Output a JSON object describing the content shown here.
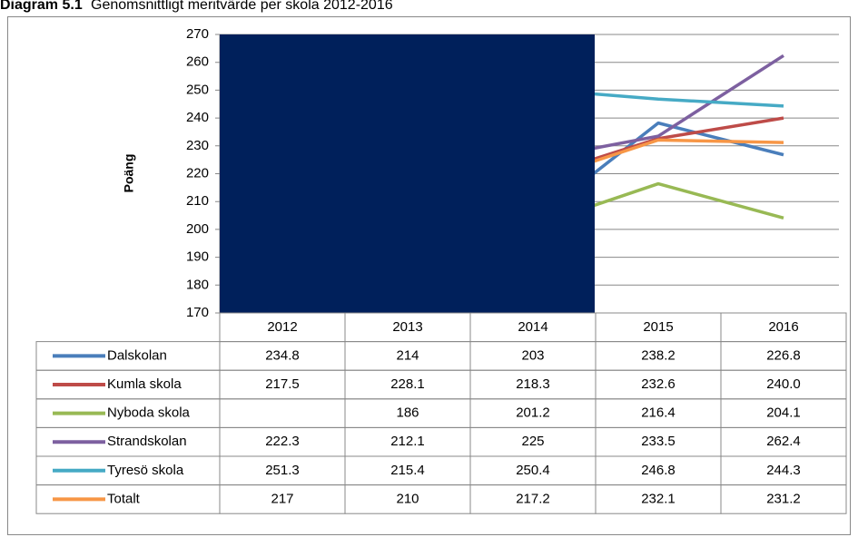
{
  "chart_data": {
    "type": "line",
    "title": "Diagram 5.1",
    "subtitle": "Genomsnittligt meritvärde per skola 2012-2016",
    "y_label": "Poäng",
    "categories": [
      "2012",
      "2013",
      "2014",
      "2015",
      "2016"
    ],
    "ylim": [
      170,
      270
    ],
    "yticks": [
      170,
      180,
      190,
      200,
      210,
      220,
      230,
      240,
      250,
      260,
      270
    ],
    "grid": true,
    "series": [
      {
        "name": "Dalskolan",
        "color": "#4a7ebb",
        "values": [
          234.8,
          214,
          203,
          238.2,
          226.8
        ]
      },
      {
        "name": "Kumla skola",
        "color": "#be4b48",
        "values": [
          217.5,
          228.1,
          218.3,
          232.6,
          240
        ],
        "value_labels": [
          "217.5",
          "228.1",
          "218.3",
          "232.6",
          "240.0"
        ]
      },
      {
        "name": "Nyboda skola",
        "color": "#98b954",
        "values": [
          null,
          186,
          201.2,
          216.4,
          204.1
        ]
      },
      {
        "name": "Strandskolan",
        "color": "#7d60a0",
        "values": [
          222.3,
          212.1,
          225,
          233.5,
          262.4
        ]
      },
      {
        "name": "Tyresö skola",
        "color": "#46aac5",
        "values": [
          251.3,
          215.4,
          250.4,
          246.8,
          244.3
        ]
      },
      {
        "name": "Totalt",
        "color": "#f79646",
        "values": [
          217,
          210,
          217.2,
          232.1,
          231.2
        ]
      }
    ]
  }
}
